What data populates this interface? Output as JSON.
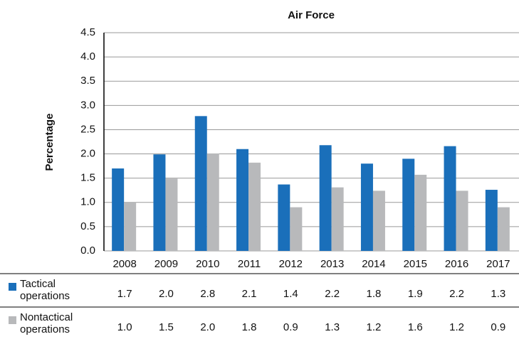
{
  "chart_data": {
    "type": "bar",
    "title": "Air Force",
    "y_label": "Percentage",
    "categories": [
      "2008",
      "2009",
      "2010",
      "2011",
      "2012",
      "2013",
      "2014",
      "2015",
      "2016",
      "2017"
    ],
    "series": [
      {
        "name": "Tactical operations",
        "color": "#1a6fba",
        "values": [
          1.7,
          1.99,
          2.78,
          2.1,
          1.37,
          2.18,
          1.8,
          1.9,
          2.16,
          1.26
        ],
        "value_labels": [
          "1.7",
          "2.0",
          "2.8",
          "2.1",
          "1.4",
          "2.2",
          "1.8",
          "1.9",
          "2.2",
          "1.3"
        ]
      },
      {
        "name": "Nontactical operations",
        "color": "#b8b9bb",
        "values": [
          1.0,
          1.49,
          2.01,
          1.82,
          0.9,
          1.31,
          1.24,
          1.57,
          1.24,
          0.9
        ],
        "value_labels": [
          "1.0",
          "1.5",
          "2.0",
          "1.8",
          "0.9",
          "1.3",
          "1.2",
          "1.6",
          "1.2",
          "0.9"
        ]
      }
    ],
    "ylim": [
      0,
      4.5
    ],
    "yticks": [
      {
        "value": 0,
        "label": "0.0"
      },
      0.5,
      {
        "value": 1,
        "label": "1.0"
      },
      1.5,
      {
        "value": 2,
        "label": "2.0"
      },
      2.5,
      {
        "value": 3,
        "label": "3.0"
      },
      3.5,
      {
        "value": 4,
        "label": "4.0"
      },
      4.5
    ],
    "grid": true
  }
}
